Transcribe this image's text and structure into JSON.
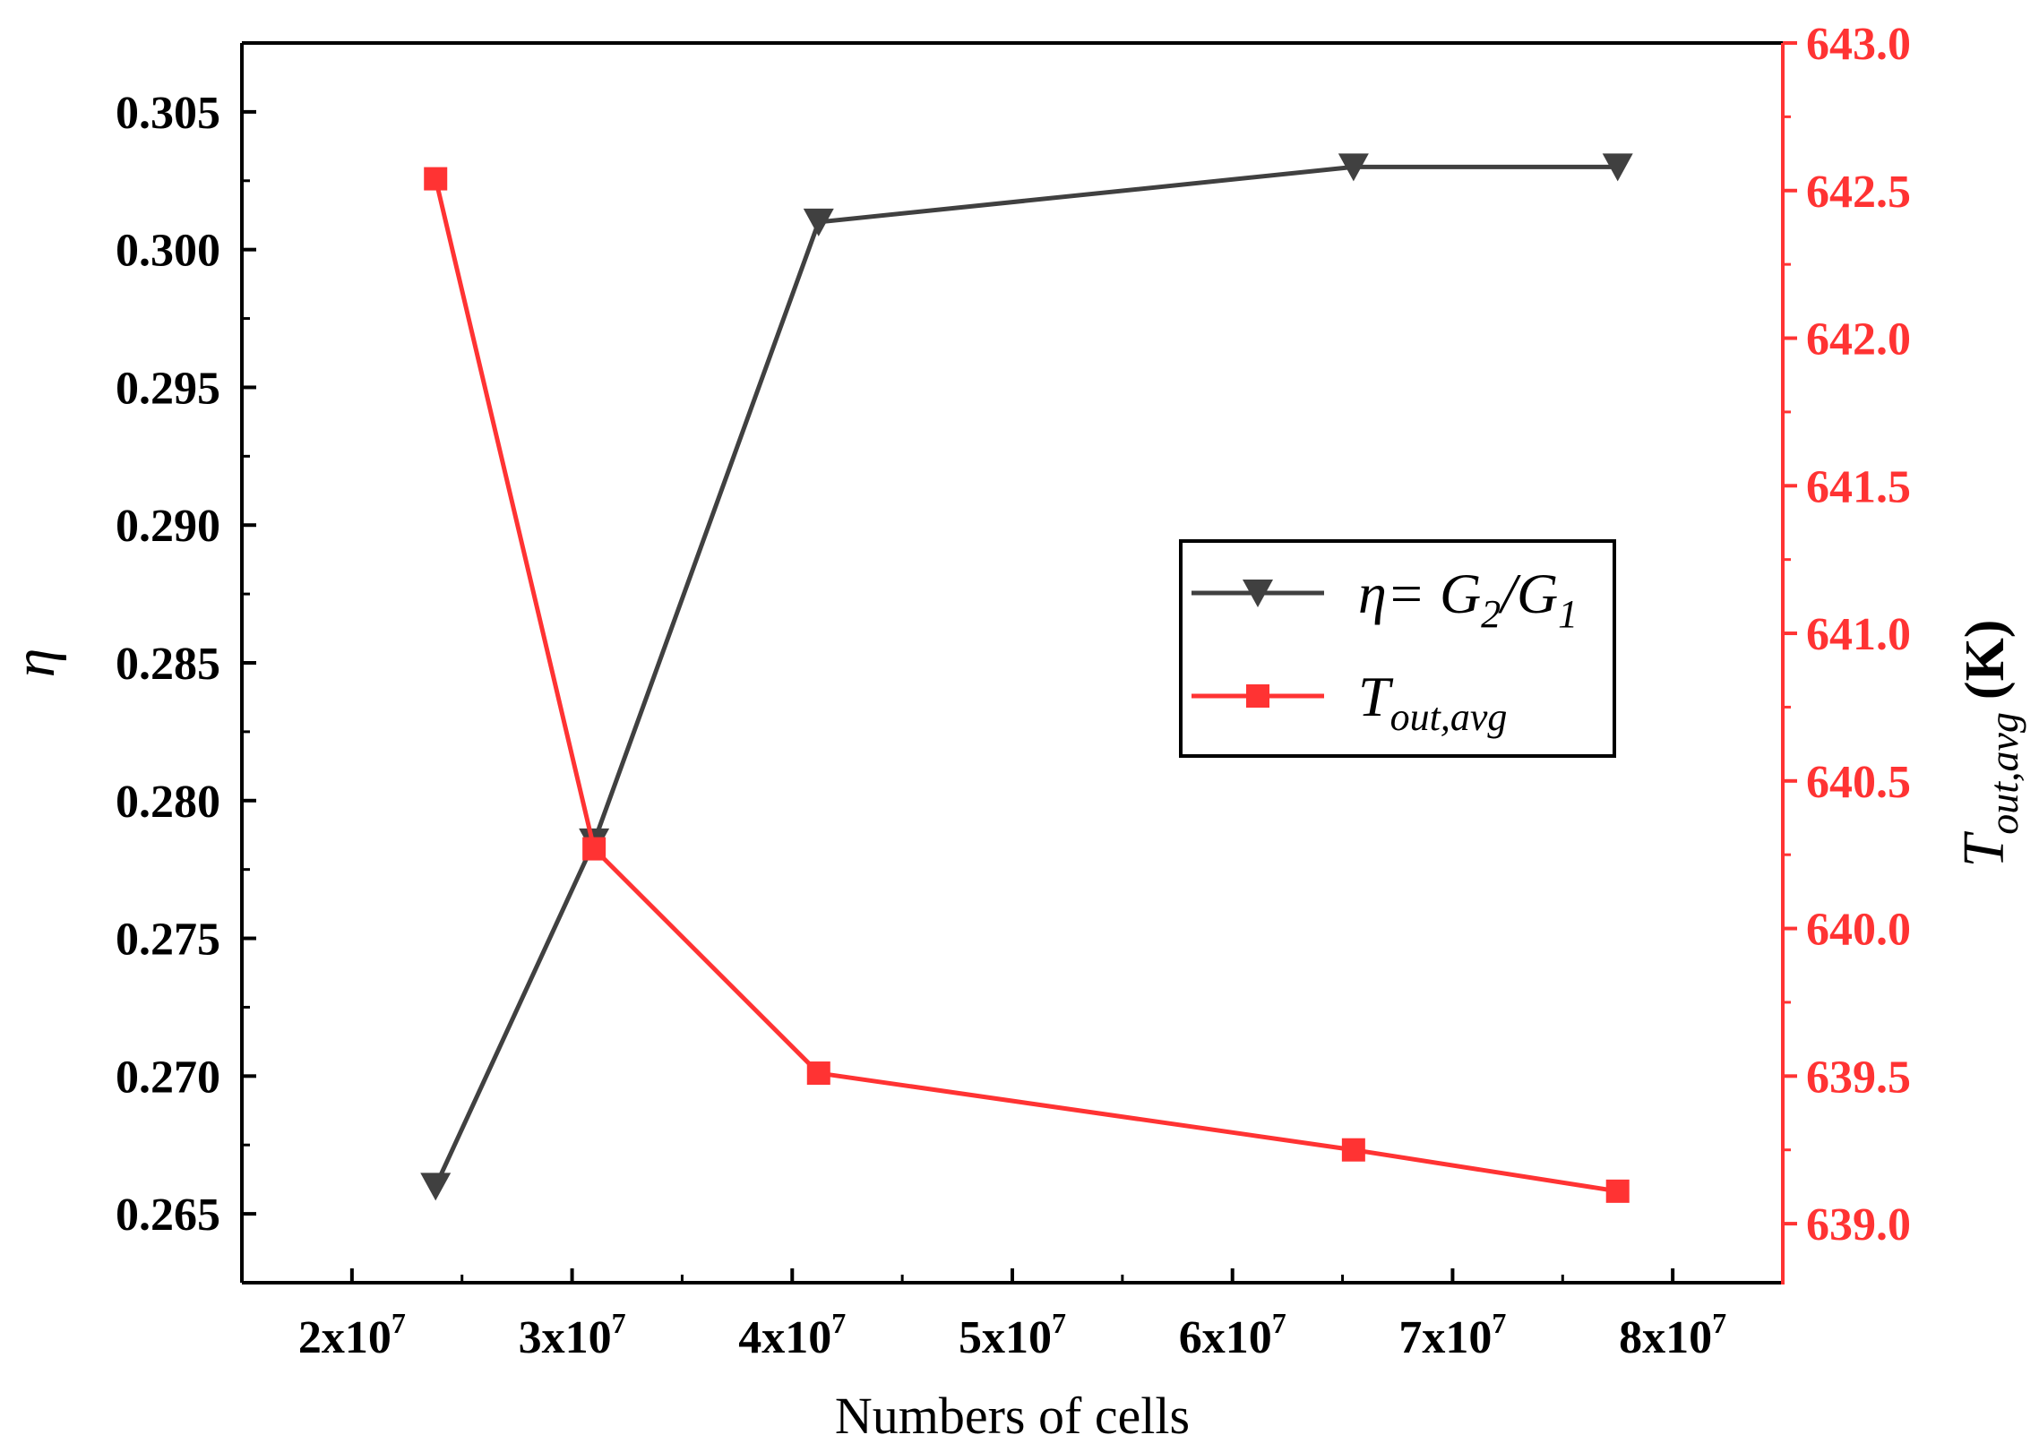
{
  "chart_data": {
    "type": "line",
    "xlabel": "Numbers of cells",
    "x_ticks": [
      {
        "base": "2x10",
        "exp": "7",
        "value": 20000000
      },
      {
        "base": "3x10",
        "exp": "7",
        "value": 30000000
      },
      {
        "base": "4x10",
        "exp": "7",
        "value": 40000000
      },
      {
        "base": "5x10",
        "exp": "7",
        "value": 50000000
      },
      {
        "base": "6x10",
        "exp": "7",
        "value": 60000000
      },
      {
        "base": "7x10",
        "exp": "7",
        "value": 70000000
      },
      {
        "base": "8x10",
        "exp": "7",
        "value": 80000000
      }
    ],
    "xlim": [
      15000000,
      85000000
    ],
    "y_left": {
      "label": "η",
      "lim": [
        0.2625,
        0.3075
      ],
      "ticks": [
        "0.265",
        "0.270",
        "0.275",
        "0.280",
        "0.285",
        "0.290",
        "0.295",
        "0.300",
        "0.305"
      ],
      "color": "#000000"
    },
    "y_right": {
      "label_main": "T",
      "label_sub": "out,avg",
      "label_unit": "(K)",
      "lim": [
        638.8,
        643.0
      ],
      "ticks": [
        "639.0",
        "639.5",
        "640.0",
        "640.5",
        "641.0",
        "641.5",
        "642.0",
        "642.5",
        "643.0"
      ],
      "color": "#ff3333"
    },
    "series": [
      {
        "axis": "left",
        "color": "#404040",
        "marker": "triangle-down",
        "x": [
          23800000,
          31000000,
          41200000,
          65500000,
          77500000
        ],
        "y": [
          0.266,
          0.2785,
          0.301,
          0.303,
          0.303
        ]
      },
      {
        "axis": "right",
        "color": "#ff3333",
        "marker": "square",
        "x": [
          23800000,
          31000000,
          41200000,
          65500000,
          77500000
        ],
        "y": [
          642.54,
          640.27,
          639.51,
          639.25,
          639.11
        ]
      }
    ],
    "legend": {
      "position": "center-right",
      "entries": [
        {
          "parts": [
            {
              "t": "η= G"
            },
            {
              "t": "2",
              "sub": true
            },
            {
              "t": "/G"
            },
            {
              "t": "1",
              "sub": true
            }
          ],
          "series": 0
        },
        {
          "parts": [
            {
              "t": "T"
            },
            {
              "t": "out,avg",
              "sub": true
            }
          ],
          "series": 1
        }
      ]
    },
    "grid": false
  }
}
